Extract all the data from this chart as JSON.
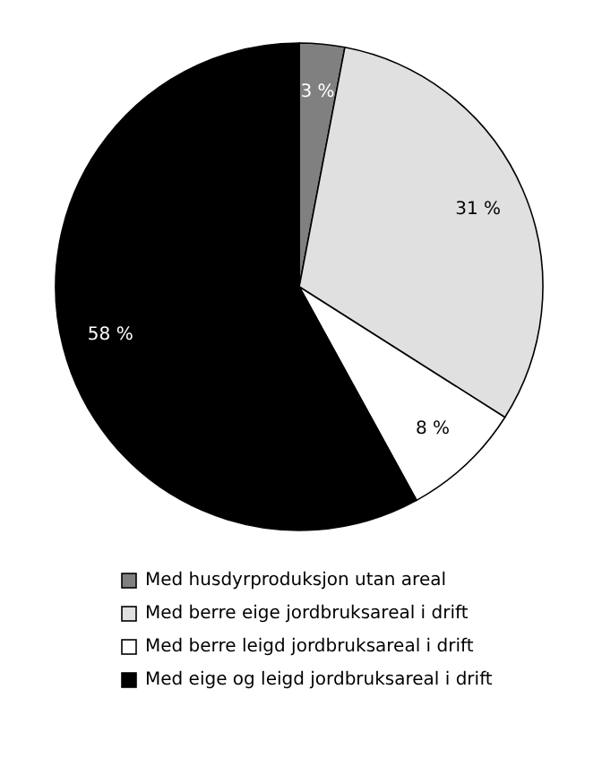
{
  "chart_data": {
    "type": "pie",
    "categories": [
      "Med husdyrproduksjon utan areal",
      "Med berre eige jordbruksareal i drift",
      "Med berre leigd jordbruksareal i drift",
      "Med eige og leigd jordbruksareal i drift"
    ],
    "values": [
      3,
      31,
      8,
      58
    ],
    "colors": [
      "#808080",
      "#e0e0e0",
      "#ffffff",
      "#000000"
    ],
    "value_labels": [
      "3 %",
      "31 %",
      "8 %",
      "58 %"
    ],
    "legend": "bottom"
  }
}
